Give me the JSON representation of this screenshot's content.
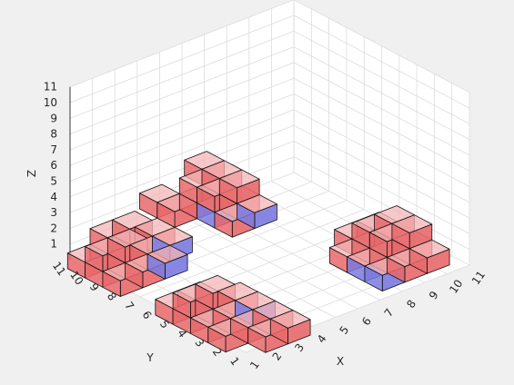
{
  "chart_data": {
    "type": "voxel-3d",
    "title": "",
    "xlabel": "X",
    "ylabel": "Y",
    "zlabel": "Z",
    "xlim": [
      1,
      11
    ],
    "ylim": [
      1,
      11
    ],
    "zlim": [
      0,
      11
    ],
    "x_ticks": [
      "1",
      "2",
      "3",
      "4",
      "5",
      "6",
      "7",
      "8",
      "9",
      "10",
      "11"
    ],
    "y_ticks": [
      "1",
      "2",
      "3",
      "4",
      "5",
      "6",
      "7",
      "8",
      "9",
      "10",
      "11"
    ],
    "z_ticks": [
      "1",
      "2",
      "3",
      "4",
      "5",
      "6",
      "7",
      "8",
      "9",
      "10",
      "11"
    ],
    "grid": true,
    "colors": {
      "surface": "#e8696b",
      "surface_translucent": "#f4b6b7",
      "interior": "#7a7ae0",
      "background": "#f0f0f0",
      "pane": "#ffffff"
    },
    "voxel_groups": [
      {
        "id": "cluster-front",
        "blocks": [
          {
            "x": 1,
            "y": 2,
            "z": 1
          },
          {
            "x": 1,
            "y": 3,
            "z": 1
          },
          {
            "x": 1,
            "y": 4,
            "z": 1
          },
          {
            "x": 1,
            "y": 5,
            "z": 1
          },
          {
            "x": 2,
            "y": 1,
            "z": 1
          },
          {
            "x": 2,
            "y": 2,
            "z": 1
          },
          {
            "x": 2,
            "y": 3,
            "z": 1
          },
          {
            "x": 2,
            "y": 4,
            "z": 1
          },
          {
            "x": 2,
            "y": 5,
            "z": 1
          },
          {
            "x": 3,
            "y": 1,
            "z": 1
          },
          {
            "x": 3,
            "y": 2,
            "z": 1
          },
          {
            "x": 3,
            "y": 3,
            "z": 1
          },
          {
            "x": 3,
            "y": 4,
            "z": 1
          },
          {
            "x": 1,
            "y": 4,
            "z": 2
          },
          {
            "x": 2,
            "y": 4,
            "z": 2
          }
        ],
        "interior": [
          {
            "x": 3,
            "y": 3,
            "z": 1
          }
        ]
      },
      {
        "id": "cluster-left",
        "blocks": [
          {
            "x": 1,
            "y": 8,
            "z": 1
          },
          {
            "x": 1,
            "y": 9,
            "z": 1
          },
          {
            "x": 1,
            "y": 10,
            "z": 1
          },
          {
            "x": 2,
            "y": 8,
            "z": 1
          },
          {
            "x": 2,
            "y": 9,
            "z": 1
          },
          {
            "x": 2,
            "y": 10,
            "z": 1
          },
          {
            "x": 3,
            "y": 8,
            "z": 1
          },
          {
            "x": 3,
            "y": 9,
            "z": 1
          },
          {
            "x": 3,
            "y": 10,
            "z": 1
          },
          {
            "x": 4,
            "y": 9,
            "z": 1
          },
          {
            "x": 4,
            "y": 10,
            "z": 1
          },
          {
            "x": 1,
            "y": 9,
            "z": 2
          },
          {
            "x": 2,
            "y": 9,
            "z": 2
          },
          {
            "x": 2,
            "y": 10,
            "z": 2
          },
          {
            "x": 3,
            "y": 10,
            "z": 2
          }
        ],
        "interior": [
          {
            "x": 3,
            "y": 8,
            "z": 1
          },
          {
            "x": 4,
            "y": 9,
            "z": 1
          }
        ]
      },
      {
        "id": "cluster-back",
        "blocks": [
          {
            "x": 6,
            "y": 8,
            "z": 2
          },
          {
            "x": 6,
            "y": 9,
            "z": 2
          },
          {
            "x": 6,
            "y": 10,
            "z": 2
          },
          {
            "x": 7,
            "y": 8,
            "z": 2
          },
          {
            "x": 7,
            "y": 9,
            "z": 2
          },
          {
            "x": 7,
            "y": 10,
            "z": 2
          },
          {
            "x": 5,
            "y": 10,
            "z": 2
          },
          {
            "x": 5,
            "y": 11,
            "z": 2
          },
          {
            "x": 7,
            "y": 9,
            "z": 3
          },
          {
            "x": 6,
            "y": 10,
            "z": 3
          },
          {
            "x": 7,
            "y": 10,
            "z": 3
          },
          {
            "x": 7,
            "y": 11,
            "z": 3
          },
          {
            "x": 6,
            "y": 9,
            "z": 3
          }
        ],
        "interior": [
          {
            "x": 7,
            "y": 8,
            "z": 2
          },
          {
            "x": 6,
            "y": 9,
            "z": 2
          }
        ]
      },
      {
        "id": "cluster-right",
        "blocks": [
          {
            "x": 8,
            "y": 2,
            "z": 1
          },
          {
            "x": 9,
            "y": 2,
            "z": 1
          },
          {
            "x": 10,
            "y": 2,
            "z": 1
          },
          {
            "x": 8,
            "y": 3,
            "z": 1
          },
          {
            "x": 9,
            "y": 3,
            "z": 1
          },
          {
            "x": 10,
            "y": 3,
            "z": 1
          },
          {
            "x": 8,
            "y": 4,
            "z": 1
          },
          {
            "x": 9,
            "y": 4,
            "z": 1
          },
          {
            "x": 10,
            "y": 4,
            "z": 1
          },
          {
            "x": 9,
            "y": 5,
            "z": 1
          },
          {
            "x": 10,
            "y": 5,
            "z": 1
          },
          {
            "x": 9,
            "y": 3,
            "z": 2
          },
          {
            "x": 10,
            "y": 3,
            "z": 2
          },
          {
            "x": 9,
            "y": 4,
            "z": 2
          },
          {
            "x": 10,
            "y": 4,
            "z": 2
          }
        ],
        "interior": [
          {
            "x": 8,
            "y": 3,
            "z": 1
          },
          {
            "x": 8,
            "y": 2,
            "z": 1
          }
        ]
      }
    ]
  }
}
